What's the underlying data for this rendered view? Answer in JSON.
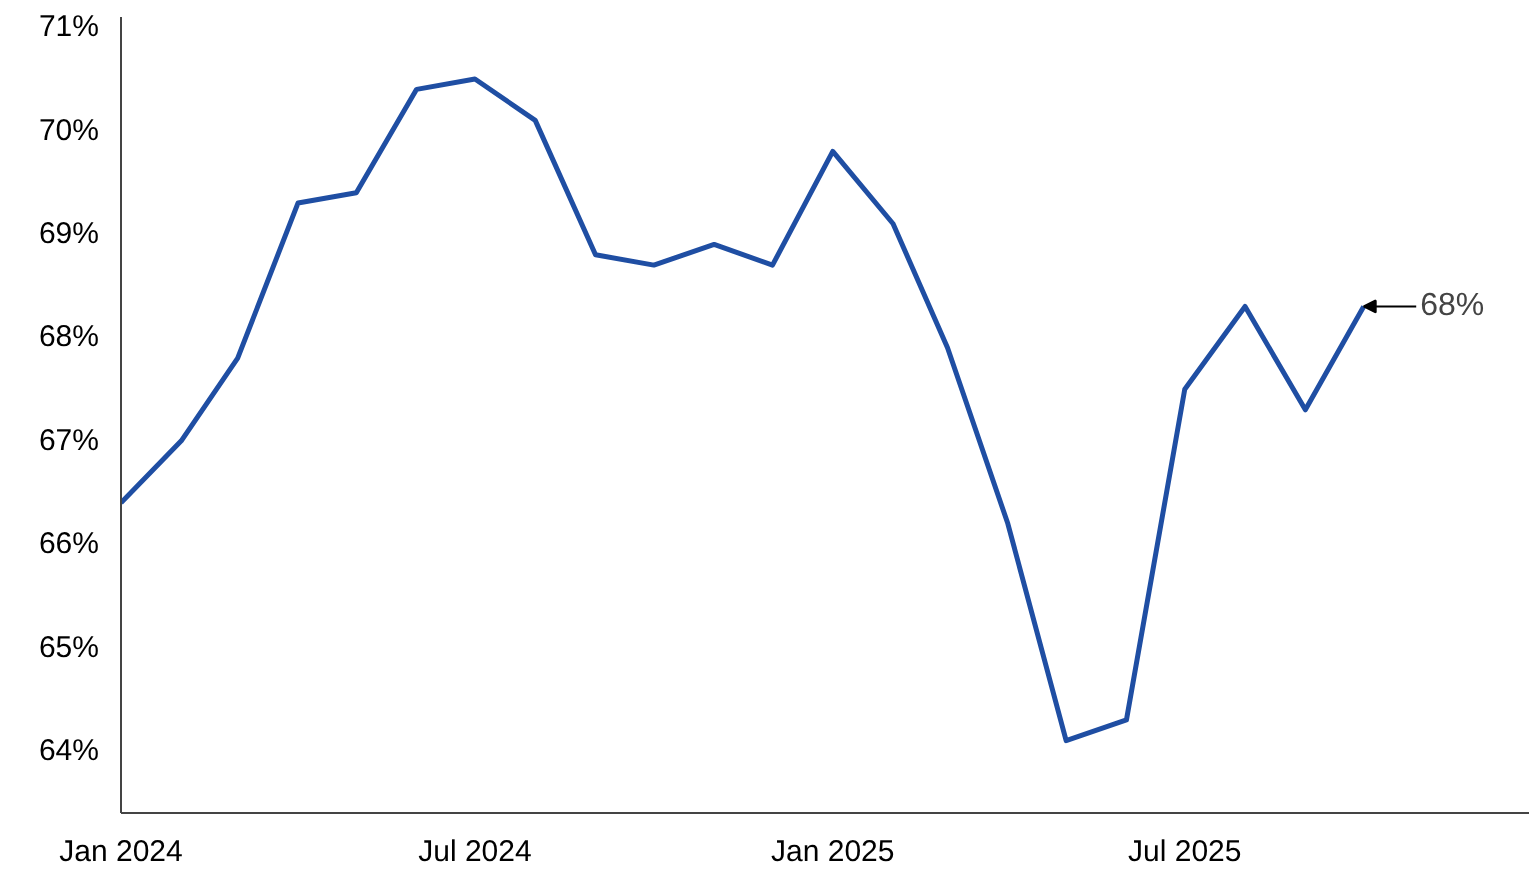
{
  "chart_data": {
    "type": "line",
    "x": [
      "2024-01",
      "2024-02",
      "2024-03",
      "2024-04",
      "2024-05",
      "2024-06",
      "2024-07",
      "2024-08",
      "2024-09",
      "2024-10",
      "2024-11",
      "2024-12",
      "2025-01",
      "2025-02",
      "2025-03",
      "2025-04",
      "2025-05",
      "2025-06",
      "2025-07",
      "2025-08",
      "2025-09",
      "2025-10"
    ],
    "series": [
      {
        "color": "#1f4ea3",
        "values": [
          66.4,
          67.0,
          67.8,
          69.3,
          69.4,
          70.4,
          70.5,
          70.1,
          68.8,
          68.7,
          68.9,
          68.7,
          69.8,
          69.1,
          67.9,
          66.2,
          64.1,
          64.3,
          67.5,
          68.3,
          67.3,
          68.3
        ]
      }
    ],
    "xlim": [
      "2024-01-01",
      "2025-12-25"
    ],
    "xticks": [
      {
        "value": "2024-01",
        "label": "Jan 2024"
      },
      {
        "value": "2024-07",
        "label": "Jul 2024"
      },
      {
        "value": "2025-01",
        "label": "Jan 2025"
      },
      {
        "value": "2025-07",
        "label": "Jul 2025"
      }
    ],
    "ylim": [
      63.4,
      71.1
    ],
    "yticks": [
      {
        "value": 64,
        "label": "64%"
      },
      {
        "value": 65,
        "label": "65%"
      },
      {
        "value": 66,
        "label": "66%"
      },
      {
        "value": 67,
        "label": "67%"
      },
      {
        "value": 68,
        "label": "68%"
      },
      {
        "value": 69,
        "label": "69%"
      },
      {
        "value": 70,
        "label": "70%"
      },
      {
        "value": 71,
        "label": "71%"
      }
    ],
    "annotations": [
      {
        "text": "68%",
        "x": "2025-10",
        "y": 68.3
      }
    ],
    "grid": false,
    "marker": "none",
    "line_style": "solid"
  }
}
